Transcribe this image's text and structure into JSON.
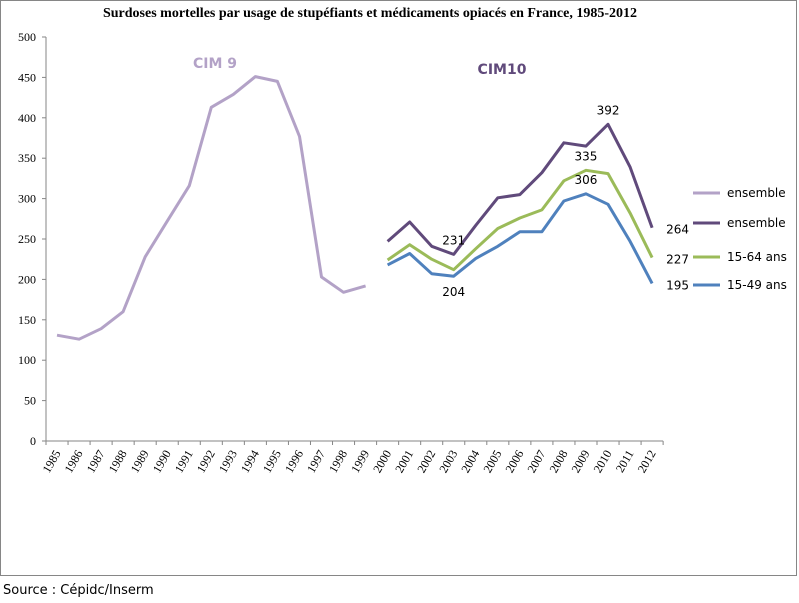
{
  "chart_data": {
    "type": "line",
    "title": "Surdoses mortelles par usage de stupéfiants et médicaments opiacés en France, 1985-2012",
    "categories": [
      "1985",
      "1986",
      "1987",
      "1988",
      "1989",
      "1990",
      "1991",
      "1992",
      "1993",
      "1994",
      "1995",
      "1996",
      "1997",
      "1998",
      "1999",
      "2000",
      "2001",
      "2002",
      "2003",
      "2004",
      "2005",
      "2006",
      "2007",
      "2008",
      "2009",
      "2010",
      "2011",
      "2012"
    ],
    "series": [
      {
        "name": "ensemble",
        "color": "#b3a2c7",
        "values": [
          131,
          126,
          139,
          160,
          228,
          272,
          316,
          413,
          429,
          451,
          445,
          377,
          203,
          184,
          192,
          null,
          null,
          null,
          null,
          null,
          null,
          null,
          null,
          null,
          null,
          null,
          null,
          null
        ]
      },
      {
        "name": "ensemble",
        "color": "#604a7b",
        "values": [
          null,
          null,
          null,
          null,
          null,
          null,
          null,
          null,
          null,
          null,
          null,
          null,
          null,
          null,
          null,
          247,
          271,
          241,
          231,
          267,
          301,
          305,
          332,
          369,
          365,
          392,
          339,
          264
        ],
        "value_labels": [
          null,
          null,
          null,
          null,
          null,
          null,
          null,
          null,
          null,
          null,
          null,
          null,
          null,
          null,
          null,
          null,
          null,
          null,
          "231",
          null,
          null,
          null,
          null,
          null,
          null,
          "392",
          null,
          "264"
        ]
      },
      {
        "name": "15-64 ans",
        "color": "#9bbb59",
        "values": [
          null,
          null,
          null,
          null,
          null,
          null,
          null,
          null,
          null,
          null,
          null,
          null,
          null,
          null,
          null,
          224,
          243,
          225,
          212,
          238,
          263,
          276,
          286,
          322,
          335,
          331,
          282,
          227
        ],
        "value_labels": [
          null,
          null,
          null,
          null,
          null,
          null,
          null,
          null,
          null,
          null,
          null,
          null,
          null,
          null,
          null,
          null,
          null,
          null,
          null,
          null,
          null,
          null,
          null,
          null,
          "335",
          null,
          null,
          "227"
        ]
      },
      {
        "name": "15-49 ans",
        "color": "#4f81bd",
        "values": [
          null,
          null,
          null,
          null,
          null,
          null,
          null,
          null,
          null,
          null,
          null,
          null,
          null,
          null,
          null,
          218,
          232,
          207,
          204,
          226,
          241,
          259,
          259,
          297,
          306,
          293,
          247,
          195
        ],
        "value_labels": [
          null,
          null,
          null,
          null,
          null,
          null,
          null,
          null,
          null,
          null,
          null,
          null,
          null,
          null,
          null,
          null,
          null,
          null,
          "204",
          null,
          null,
          null,
          null,
          null,
          "306",
          null,
          null,
          "195"
        ]
      }
    ],
    "annotations": [
      {
        "text": "CIM 9",
        "color": "#b3a2c7"
      },
      {
        "text": "CIM10",
        "color": "#604a7b"
      }
    ],
    "ylim": [
      0,
      500
    ],
    "yticks": [
      0,
      50,
      100,
      150,
      200,
      250,
      300,
      350,
      400,
      450,
      500
    ],
    "grid": false,
    "legend": "right",
    "source": "Source : Cépidc/Inserm"
  }
}
